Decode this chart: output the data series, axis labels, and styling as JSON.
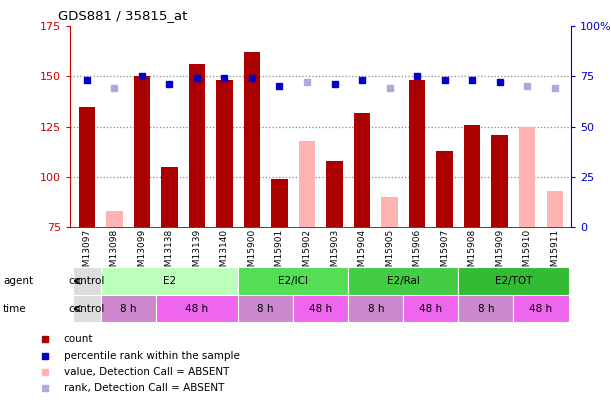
{
  "title": "GDS881 / 35815_at",
  "samples": [
    "GSM13097",
    "GSM13098",
    "GSM13099",
    "GSM13138",
    "GSM13139",
    "GSM13140",
    "GSM15900",
    "GSM15901",
    "GSM15902",
    "GSM15903",
    "GSM15904",
    "GSM15905",
    "GSM15906",
    "GSM15907",
    "GSM15908",
    "GSM15909",
    "GSM15910",
    "GSM15911"
  ],
  "count_values": [
    135,
    null,
    150,
    105,
    156,
    148,
    162,
    99,
    null,
    108,
    132,
    null,
    148,
    113,
    126,
    121,
    null,
    null
  ],
  "count_absent": [
    null,
    83,
    null,
    null,
    null,
    null,
    null,
    null,
    118,
    null,
    null,
    90,
    null,
    null,
    null,
    null,
    125,
    93
  ],
  "rank_values": [
    73,
    null,
    75,
    71,
    74,
    74,
    74,
    70,
    null,
    71,
    73,
    null,
    75,
    73,
    73,
    72,
    null,
    null
  ],
  "rank_absent": [
    null,
    69,
    null,
    null,
    null,
    null,
    null,
    null,
    72,
    null,
    null,
    69,
    null,
    null,
    null,
    null,
    70,
    69
  ],
  "ylim_left": [
    75,
    175
  ],
  "ylim_right": [
    0,
    100
  ],
  "yticks_left": [
    75,
    100,
    125,
    150,
    175
  ],
  "yticks_right": [
    0,
    25,
    50,
    75,
    100
  ],
  "ytick_labels_right": [
    "0",
    "25",
    "50",
    "75",
    "100%"
  ],
  "bar_color": "#aa0000",
  "bar_absent_color": "#ffb3b3",
  "rank_color": "#0000cc",
  "rank_absent_color": "#aaaadd",
  "agent_groups": [
    {
      "cols": [
        0
      ],
      "color": "#dddddd",
      "label": "control"
    },
    {
      "cols": [
        1,
        2,
        3,
        4,
        5
      ],
      "color": "#bbffbb",
      "label": "E2"
    },
    {
      "cols": [
        6,
        7,
        8,
        9
      ],
      "color": "#55dd55",
      "label": "E2/ICI"
    },
    {
      "cols": [
        10,
        11,
        12,
        13
      ],
      "color": "#44cc44",
      "label": "E2/Ral"
    },
    {
      "cols": [
        14,
        15,
        16,
        17
      ],
      "color": "#33bb33",
      "label": "E2/TOT"
    }
  ],
  "time_groups": [
    {
      "cols": [
        0
      ],
      "color": "#dddddd",
      "label": "control"
    },
    {
      "cols": [
        1,
        2
      ],
      "color": "#cc88cc",
      "label": "8 h"
    },
    {
      "cols": [
        3,
        4,
        5
      ],
      "color": "#ee66ee",
      "label": "48 h"
    },
    {
      "cols": [
        6,
        7
      ],
      "color": "#cc88cc",
      "label": "8 h"
    },
    {
      "cols": [
        8,
        9
      ],
      "color": "#ee66ee",
      "label": "48 h"
    },
    {
      "cols": [
        10,
        11
      ],
      "color": "#cc88cc",
      "label": "8 h"
    },
    {
      "cols": [
        12,
        13
      ],
      "color": "#ee66ee",
      "label": "48 h"
    },
    {
      "cols": [
        14,
        15
      ],
      "color": "#cc88cc",
      "label": "8 h"
    },
    {
      "cols": [
        16,
        17
      ],
      "color": "#ee66ee",
      "label": "48 h"
    }
  ],
  "grid_dotted_lines": [
    100,
    125,
    150
  ],
  "grid_color": "#888888",
  "bg_color": "#ffffff",
  "left_axis_color": "#cc0000",
  "right_axis_color": "#0000cc",
  "legend_items": [
    {
      "color": "#aa0000",
      "label": "count"
    },
    {
      "color": "#0000cc",
      "label": "percentile rank within the sample"
    },
    {
      "color": "#ffb3b3",
      "label": "value, Detection Call = ABSENT"
    },
    {
      "color": "#aaaadd",
      "label": "rank, Detection Call = ABSENT"
    }
  ]
}
